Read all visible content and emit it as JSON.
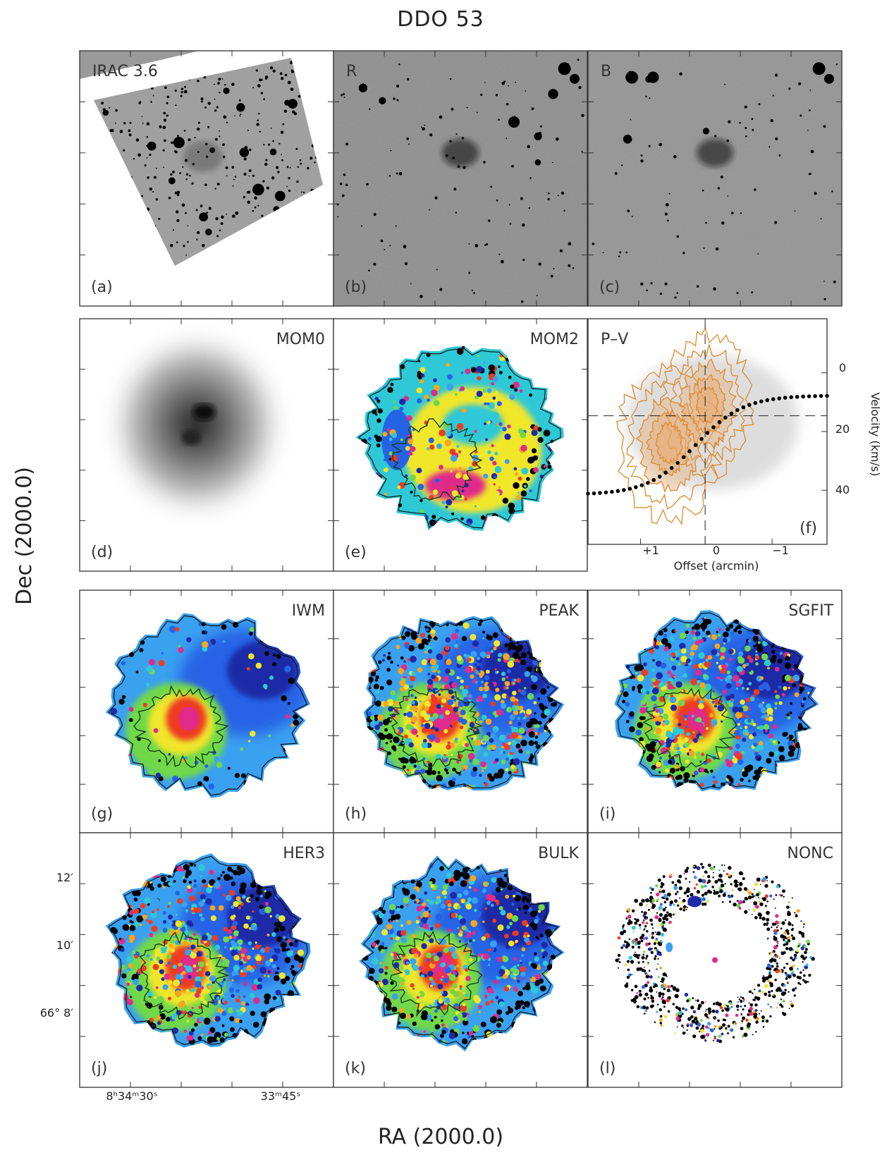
{
  "figure": {
    "title": "DDO 53",
    "x_axis_title": "RA (2000.0)",
    "y_axis_title": "Dec (2000.0)"
  },
  "panels": [
    {
      "id": "a",
      "name": "IRAC 3.6",
      "letter": "(a)",
      "kind": "irac"
    },
    {
      "id": "b",
      "name": "R",
      "letter": "(b)",
      "kind": "optical"
    },
    {
      "id": "c",
      "name": "B",
      "letter": "(c)",
      "kind": "optical"
    },
    {
      "id": "d",
      "name": "MOM0",
      "letter": "(d)",
      "kind": "mom0"
    },
    {
      "id": "e",
      "name": "MOM2",
      "letter": "(e)",
      "kind": "velmap"
    },
    {
      "id": "f",
      "name": "P–V",
      "letter": "(f)",
      "kind": "pv"
    },
    {
      "id": "g",
      "name": "IWM",
      "letter": "(g)",
      "kind": "velmap"
    },
    {
      "id": "h",
      "name": "PEAK",
      "letter": "(h)",
      "kind": "velmap"
    },
    {
      "id": "i",
      "name": "SGFIT",
      "letter": "(i)",
      "kind": "velmap"
    },
    {
      "id": "j",
      "name": "HER3",
      "letter": "(j)",
      "kind": "velmap"
    },
    {
      "id": "k",
      "name": "BULK",
      "letter": "(k)",
      "kind": "velmap"
    },
    {
      "id": "l",
      "name": "NONC",
      "letter": "(l)",
      "kind": "nonc"
    }
  ],
  "ra_ticks": {
    "left": "8ʰ34ᵐ30ˢ",
    "right": "33ᵐ45ˢ"
  },
  "dec_ticks": [
    "12′",
    "10′",
    "66° 8′"
  ],
  "pv_axes": {
    "xlabel": "Offset (arcmin)",
    "ylabel": "Velocity (km/s)",
    "xticks": [
      "+1",
      "0",
      "−1"
    ],
    "yticks": [
      "0",
      "20",
      "40"
    ]
  },
  "colors": {
    "orange_contours": "#e08a2c",
    "map_palette": [
      "#1f2aa8",
      "#2563e6",
      "#3aa0f0",
      "#2ec8d6",
      "#6fd84a",
      "#f0e62a",
      "#f7a51c",
      "#ee3b22",
      "#e02b8a",
      "#000000"
    ]
  }
}
